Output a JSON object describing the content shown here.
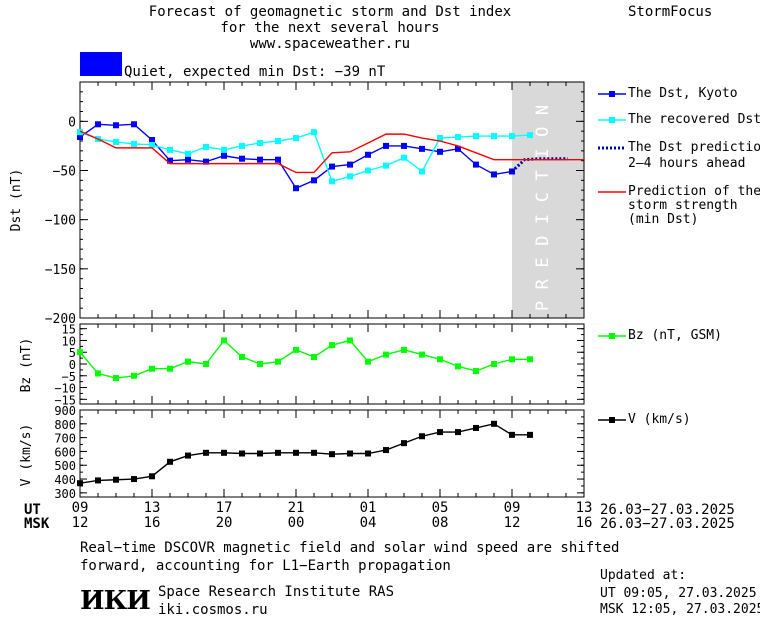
{
  "header": {
    "title_lines": [
      "Forecast of geomagnetic storm and Dst index",
      "for the next several hours",
      "www.spaceweather.ru"
    ],
    "brand": "StormFocus"
  },
  "status": {
    "text": "Quiet, expected min Dst: −39 nT",
    "color": "#0000ff"
  },
  "legend": {
    "dst": "The Dst, Kyoto",
    "recovered": "The recovered Dst",
    "prediction_lines": [
      "The Dst prediction",
      "2–4 hours ahead"
    ],
    "strength_lines": [
      "Prediction of the",
      "storm strength",
      "(min Dst)"
    ],
    "bz": "Bz (nT, GSM)",
    "v": "V (km/s)"
  },
  "chart_data": [
    {
      "type": "line",
      "ylabel": "Dst (nT)",
      "ylim": [
        -200,
        40
      ],
      "yticks": [
        "0",
        "−50",
        "−100",
        "−150",
        "−200"
      ],
      "ytick_values": [
        0,
        -50,
        -100,
        -150,
        -200
      ],
      "xlim": [
        0,
        28
      ],
      "prediction_band": {
        "from": 24,
        "to": 28,
        "label": "PREDICTION",
        "color": "#d9d9d9"
      },
      "series": [
        {
          "name": "The Dst, Kyoto",
          "color": "#0000ff",
          "marker": "square",
          "x": [
            0,
            1,
            2,
            3,
            4,
            5,
            6,
            7,
            8,
            9,
            10,
            11,
            12,
            13,
            14,
            15,
            16,
            17,
            18,
            19,
            20,
            21,
            22,
            23,
            24
          ],
          "y": [
            -16,
            -3,
            -4,
            -3,
            -19,
            -40,
            -39,
            -41,
            -35,
            -38,
            -39,
            -39,
            -68,
            -60,
            -46,
            -44,
            -34,
            -25,
            -25,
            -28,
            -31,
            -28,
            -44,
            -54,
            -51
          ]
        },
        {
          "name": "The recovered Dst",
          "color": "#00ffff",
          "marker": "square",
          "x": [
            0,
            1,
            2,
            3,
            4,
            5,
            6,
            7,
            8,
            9,
            10,
            11,
            12,
            13,
            14,
            15,
            16,
            17,
            18,
            19,
            20,
            21,
            22,
            23,
            24,
            25
          ],
          "y": [
            -11,
            -18,
            -21,
            -23,
            -24,
            -29,
            -33,
            -26,
            -29,
            -25,
            -22,
            -20,
            -17,
            -11,
            -61,
            -56,
            -50,
            -45,
            -37,
            -51,
            -17,
            -16,
            -15,
            -15,
            -15,
            -14
          ]
        },
        {
          "name": "The Dst prediction",
          "color": "#0000aa",
          "style": "dotted",
          "x": [
            24,
            24.7,
            25.5,
            26.3,
            27.1
          ],
          "y": [
            -51,
            -39,
            -38,
            -38,
            -38
          ]
        },
        {
          "name": "Prediction of the storm strength",
          "color": "#ff0000",
          "marker": "none",
          "x": [
            0,
            1,
            2,
            3,
            4,
            5,
            6,
            7,
            8,
            9,
            10,
            11,
            12,
            13,
            14,
            15,
            16,
            17,
            18,
            19,
            20,
            21,
            22,
            23,
            24,
            25,
            26,
            27,
            28
          ],
          "y": [
            -10,
            -18,
            -27,
            -27,
            -27,
            -43,
            -43,
            -43,
            -43,
            -43,
            -43,
            -43,
            -52,
            -52,
            -32,
            -31,
            -22,
            -13,
            -13,
            -17,
            -20,
            -25,
            -32,
            -39,
            -39,
            -39,
            -39,
            -39,
            -39
          ]
        }
      ]
    },
    {
      "type": "line",
      "ylabel": "Bz (nT)",
      "ylim": [
        -17,
        17
      ],
      "yticks": [
        "15",
        "10",
        "5",
        "0",
        "−5",
        "−10",
        "−15"
      ],
      "ytick_values": [
        15,
        10,
        5,
        0,
        -5,
        -10,
        -15
      ],
      "series": [
        {
          "name": "Bz (nT, GSM)",
          "color": "#00ff00",
          "marker": "square",
          "x": [
            0,
            1,
            2,
            3,
            4,
            5,
            6,
            7,
            8,
            9,
            10,
            11,
            12,
            13,
            14,
            15,
            16,
            17,
            18,
            19,
            20,
            21,
            22,
            23,
            24,
            25
          ],
          "y": [
            5,
            -4,
            -6,
            -5,
            -2,
            -2,
            1,
            0,
            10,
            3,
            0,
            1,
            6,
            3,
            8,
            10,
            1,
            4,
            6,
            4,
            2,
            -1,
            -3,
            0,
            2,
            2
          ]
        }
      ]
    },
    {
      "type": "line",
      "ylabel": "V (km/s)",
      "ylim": [
        270,
        900
      ],
      "yticks": [
        "900",
        "800",
        "700",
        "600",
        "500",
        "400",
        "300"
      ],
      "ytick_values": [
        900,
        800,
        700,
        600,
        500,
        400,
        300
      ],
      "series": [
        {
          "name": "V (km/s)",
          "color": "#000000",
          "marker": "square",
          "x": [
            0,
            1,
            2,
            3,
            4,
            5,
            6,
            7,
            8,
            9,
            10,
            11,
            12,
            13,
            14,
            15,
            16,
            17,
            18,
            19,
            20,
            21,
            22,
            23,
            24,
            25
          ],
          "y": [
            370,
            390,
            395,
            400,
            420,
            525,
            570,
            590,
            590,
            585,
            585,
            590,
            590,
            590,
            580,
            585,
            585,
            610,
            660,
            710,
            740,
            740,
            770,
            800,
            720,
            720
          ]
        }
      ]
    }
  ],
  "axis_x": {
    "ut_label": "UT",
    "msk_label": "MSK",
    "ut_ticks": [
      "09",
      "13",
      "17",
      "21",
      "01",
      "05",
      "09",
      "13"
    ],
    "msk_ticks": [
      "12",
      "16",
      "20",
      "00",
      "04",
      "08",
      "12",
      "16"
    ],
    "range_ut": "26.03−27.03.2025",
    "range_msk": "26.03−27.03.2025"
  },
  "footer": {
    "note_lines": [
      "Real−time DSCOVR magnetic field and solar wind speed are shifted",
      "forward, accounting for L1−Earth propagation"
    ],
    "logo_text": "ИКИ",
    "org_name": "Space Research Institute RAS",
    "org_site": "iki.cosmos.ru",
    "updated_label": "Updated at:",
    "updated_ut": "UT   09:05, 27.03.2025",
    "updated_msk": "MSK 12:05, 27.03.2025"
  }
}
